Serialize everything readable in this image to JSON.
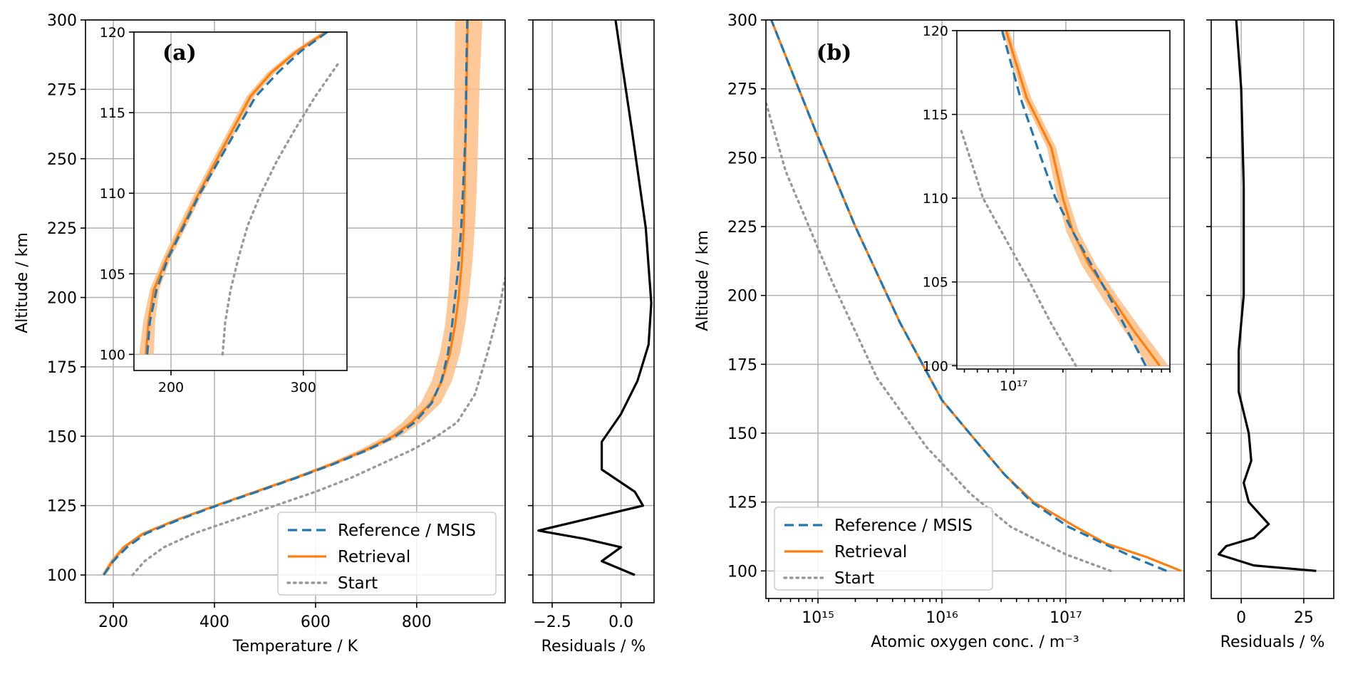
{
  "colors": {
    "reference": "#1f77b4",
    "retrieval": "#ff7f0e",
    "start": "#999999",
    "residual": "#000000",
    "band": "#ffbe86"
  },
  "legend": {
    "reference": "Reference / MSIS",
    "retrieval": "Retrieval",
    "start": "Start"
  },
  "chart_data": [
    {
      "id": "a-main",
      "type": "line",
      "panel_label": "(a)",
      "xlabel": "Temperature / K",
      "ylabel": "Altitude / km",
      "xlim": [
        145,
        975
      ],
      "ylim": [
        90,
        300
      ],
      "xticks": [
        200,
        400,
        600,
        800
      ],
      "yticks": [
        100,
        125,
        150,
        175,
        200,
        225,
        250,
        275,
        300
      ],
      "grid": true,
      "legend_position": "lower-right",
      "series": [
        {
          "name": "Reference / MSIS",
          "style": "dashed",
          "x": [
            181,
            200,
            227,
            265,
            331,
            405,
            484,
            562,
            636,
            702,
            758,
            796,
            830,
            849,
            862,
            870,
            876,
            883,
            888,
            892,
            897,
            898,
            900
          ],
          "y": [
            100,
            105,
            110,
            115,
            120,
            125,
            130,
            135,
            140,
            145,
            150,
            155,
            162,
            170,
            180,
            190,
            200,
            212,
            225,
            240,
            260,
            280,
            300
          ]
        },
        {
          "name": "Retrieval",
          "style": "solid",
          "x": [
            181,
            198,
            221,
            260,
            327,
            402,
            481,
            560,
            633,
            698,
            753,
            790,
            828,
            850,
            866,
            876,
            883,
            889,
            893,
            895,
            897,
            899,
            901
          ],
          "y": [
            100,
            105,
            110,
            115,
            120,
            125,
            130,
            135,
            140,
            145,
            150,
            155,
            162,
            170,
            180,
            190,
            200,
            212,
            225,
            240,
            260,
            280,
            300
          ],
          "band_lower": [
            176,
            193,
            216,
            254,
            320,
            395,
            473,
            551,
            623,
            686,
            738,
            772,
            808,
            830,
            846,
            856,
            862,
            867,
            870,
            872,
            873,
            875,
            876
          ],
          "band_upper": [
            186,
            203,
            226,
            266,
            334,
            409,
            489,
            569,
            643,
            710,
            768,
            808,
            848,
            870,
            886,
            896,
            903,
            910,
            915,
            919,
            922,
            925,
            930
          ]
        },
        {
          "name": "Start",
          "style": "dotted",
          "x": [
            238,
            262,
            300,
            360,
            440,
            520,
            600,
            670,
            730,
            790,
            840,
            880,
            915,
            940,
            962,
            975
          ],
          "y": [
            100,
            105,
            110,
            115,
            120,
            125,
            130,
            135,
            140,
            145,
            150,
            155,
            165,
            180,
            195,
            207
          ]
        }
      ]
    },
    {
      "id": "a-inset",
      "type": "line",
      "xlim": [
        172,
        333
      ],
      "ylim": [
        99,
        120
      ],
      "xticks": [
        200,
        300
      ],
      "yticks": [
        100,
        105,
        110,
        115,
        120
      ],
      "grid": true,
      "series": [
        {
          "name": "Reference / MSIS",
          "style": "dashed",
          "x": [
            182,
            184,
            189,
            198,
            210,
            222,
            236,
            250,
            264,
            281,
            298,
            318
          ],
          "y": [
            100,
            102,
            104,
            106,
            108,
            110,
            112,
            114,
            116,
            117.5,
            118.8,
            120
          ]
        },
        {
          "name": "Retrieval",
          "style": "solid",
          "x": [
            181,
            183,
            187,
            197,
            209,
            221,
            234,
            247,
            260,
            276,
            295,
            317
          ],
          "y": [
            100,
            102,
            104,
            106,
            108,
            110,
            112,
            114,
            116,
            117.5,
            118.8,
            120
          ],
          "band_lower": [
            176,
            179,
            184,
            194,
            206,
            218,
            231,
            244,
            257,
            273,
            292,
            314
          ],
          "band_upper": [
            187,
            188,
            191,
            200,
            212,
            224,
            237,
            250,
            263,
            279,
            298,
            320
          ]
        },
        {
          "name": "Start",
          "style": "dotted",
          "x": [
            239,
            241,
            245,
            251,
            258,
            268,
            280,
            294,
            309,
            326
          ],
          "y": [
            100,
            102,
            104,
            106,
            108,
            110,
            112,
            114,
            116,
            118
          ]
        }
      ]
    },
    {
      "id": "a-residuals",
      "type": "line",
      "xlabel": "Residuals / %",
      "xlim": [
        -3.2,
        1.2
      ],
      "ylim": [
        90,
        300
      ],
      "xticks": [
        -2.5,
        0.0
      ],
      "xticklabels": [
        "−2.5",
        "0.0"
      ],
      "yticks": [
        100,
        125,
        150,
        175,
        200,
        225,
        250,
        275,
        300
      ],
      "grid": true,
      "series": [
        {
          "name": "Residuals",
          "style": "solid",
          "x": [
            0.5,
            -0.7,
            0.0,
            -1.3,
            -3.0,
            -1.3,
            0.8,
            0.5,
            -0.7,
            -0.7,
            0.0,
            0.6,
            1.0,
            1.1,
            0.9,
            0.4,
            -0.2
          ],
          "y": [
            100,
            105,
            110,
            113,
            116,
            120,
            125,
            130,
            138,
            148,
            158,
            170,
            183,
            198,
            225,
            260,
            300
          ]
        }
      ]
    },
    {
      "id": "b-main",
      "type": "line",
      "panel_label": "(b)",
      "xlabel": "Atomic oxygen conc. / m⁻³",
      "ylabel": "Altitude / km",
      "xscale": "log",
      "xlim": [
        380000000000000.0,
        9e+17
      ],
      "ylim": [
        90,
        300
      ],
      "xticks": [
        1000000000000000.0,
        1e+16,
        1e+17
      ],
      "xticklabels": [
        "10¹⁵",
        "10¹⁶",
        "10¹⁷"
      ],
      "yticks": [
        100,
        125,
        150,
        175,
        200,
        225,
        250,
        275,
        300
      ],
      "grid": true,
      "legend_position": "lower-left",
      "series": [
        {
          "name": "Reference / MSIS",
          "style": "dashed",
          "x": [
            6.5e+17,
            3.5e+17,
            2e+17,
            1.05e+17,
            5.3e+16,
            3.2e+16,
            1.9e+16,
            1e+16,
            4600000000000000.0,
            2000000000000000.0,
            950000000000000.0,
            420000000000000.0
          ],
          "y": [
            100,
            105,
            110,
            116,
            125,
            135,
            147,
            162,
            190,
            225,
            260,
            300
          ]
        },
        {
          "name": "Retrieval",
          "style": "solid",
          "x": [
            8.5e+17,
            4.5e+17,
            2.1e+17,
            1.2e+17,
            5.5e+16,
            3.2e+16,
            1.9e+16,
            1e+16,
            4600000000000000.0,
            2000000000000000.0,
            950000000000000.0,
            420000000000000.0
          ],
          "y": [
            100,
            105,
            110,
            116,
            125,
            135,
            147,
            162,
            190,
            225,
            260,
            300
          ]
        },
        {
          "name": "Start",
          "style": "dotted",
          "x": [
            2.3e+17,
            1e+17,
            3.6e+16,
            1.7e+16,
            7500000000000000.0,
            3000000000000000.0,
            1300000000000000.0,
            550000000000000.0,
            380000000000000.0
          ],
          "y": [
            100,
            106,
            116,
            128,
            145,
            170,
            205,
            245,
            270
          ]
        }
      ]
    },
    {
      "id": "b-inset",
      "type": "line",
      "xscale": "log",
      "xlim": [
        4.5e+16,
        9e+17
      ],
      "ylim": [
        99.8,
        120
      ],
      "xticks": [
        1e+17
      ],
      "xticklabels": [
        "10¹⁷"
      ],
      "yticks": [
        100,
        105,
        110,
        115,
        120
      ],
      "grid": true,
      "series": [
        {
          "name": "Reference / MSIS",
          "style": "dashed",
          "x": [
            6.4e+17,
            5e+17,
            3.9e+17,
            3e+17,
            2.3e+17,
            1.8e+17,
            1.4e+17,
            1.1e+17,
            8.5e+16
          ],
          "y": [
            100,
            102,
            104,
            106,
            108,
            110,
            113,
            116,
            120
          ]
        },
        {
          "name": "Retrieval",
          "style": "solid",
          "x": [
            7.8e+17,
            5.5e+17,
            4e+17,
            2.9e+17,
            2.3e+17,
            2e+17,
            1.7e+17,
            1.2e+17,
            9e+16
          ],
          "y": [
            100,
            102,
            104,
            106,
            108,
            110,
            113,
            116,
            120
          ],
          "band_lower": [
            6.6e+17,
            4.8e+17,
            3.5e+17,
            2.6e+17,
            2.1e+17,
            1.85e+17,
            1.6e+17,
            1.14e+17,
            8.6e+16
          ],
          "band_upper": [
            8.8e+17,
            6.2e+17,
            4.4e+17,
            3.2e+17,
            2.5e+17,
            2.15e+17,
            1.82e+17,
            1.28e+17,
            9.4e+16
          ]
        },
        {
          "name": "Start",
          "style": "dotted",
          "x": [
            2.4e+17,
            1.7e+17,
            1.25e+17,
            9e+16,
            6.5e+16,
            4.8e+16
          ],
          "y": [
            100,
            102.5,
            105,
            107.5,
            110,
            114
          ]
        }
      ]
    },
    {
      "id": "b-residuals",
      "type": "line",
      "xlabel": "Residuals / %",
      "xlim": [
        -12,
        37
      ],
      "ylim": [
        90,
        300
      ],
      "xticks": [
        0,
        25
      ],
      "yticks": [
        100,
        125,
        150,
        175,
        200,
        225,
        250,
        275,
        300
      ],
      "grid": true,
      "series": [
        {
          "name": "Residuals",
          "style": "solid",
          "x": [
            30,
            5,
            -9,
            -6,
            5,
            11,
            3,
            1,
            4,
            3,
            -1,
            -1,
            1,
            1,
            0,
            -2
          ],
          "y": [
            100,
            102,
            106,
            109,
            112,
            117,
            125,
            132,
            140,
            150,
            165,
            180,
            200,
            240,
            275,
            300
          ]
        }
      ]
    }
  ]
}
